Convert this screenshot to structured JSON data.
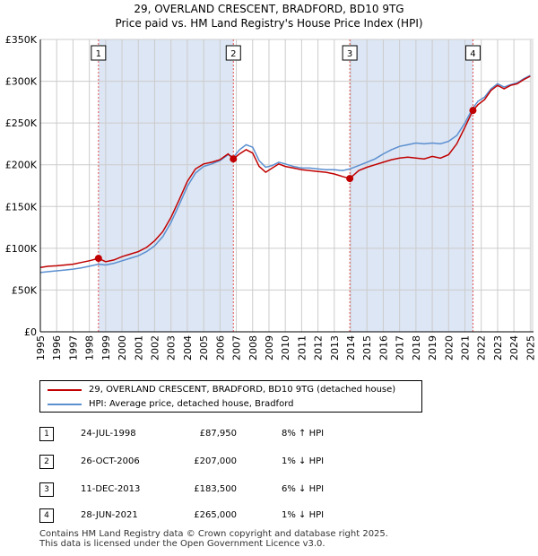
{
  "title_line1": "29, OVERLAND CRESCENT, BRADFORD, BD10 9TG",
  "title_line2": "Price paid vs. HM Land Registry's House Price Index (HPI)",
  "colors": {
    "property": "#c00000",
    "hpi": "#5b8fd0",
    "shade": "#dde6f4",
    "grid": "#cccccc",
    "vline": "#e05050"
  },
  "chart_data": {
    "type": "line",
    "title": "29, OVERLAND CRESCENT, BRADFORD, BD10 9TG",
    "subtitle": "Price paid vs. HM Land Registry's House Price Index (HPI)",
    "xlabel": "",
    "ylabel": "",
    "xlim": [
      1995,
      2025.2
    ],
    "ylim": [
      0,
      350000
    ],
    "y_ticks": [
      0,
      50000,
      100000,
      150000,
      200000,
      250000,
      300000,
      350000
    ],
    "y_tick_labels": [
      "£0",
      "£50K",
      "£100K",
      "£150K",
      "£200K",
      "£250K",
      "£300K",
      "£350K"
    ],
    "x_ticks": [
      1995,
      1996,
      1997,
      1998,
      1999,
      2000,
      2001,
      2002,
      2003,
      2004,
      2005,
      2006,
      2007,
      2008,
      2009,
      2010,
      2011,
      2012,
      2013,
      2014,
      2015,
      2016,
      2017,
      2018,
      2019,
      2020,
      2021,
      2022,
      2023,
      2024,
      2025
    ],
    "x_tick_labels": [
      "1995",
      "1996",
      "1997",
      "1998",
      "1999",
      "2000",
      "2001",
      "2002",
      "2003",
      "2004",
      "2005",
      "2006",
      "2007",
      "2008",
      "2009",
      "2010",
      "2011",
      "2012",
      "2013",
      "2014",
      "2015",
      "2016",
      "2017",
      "2018",
      "2019",
      "2020",
      "2021",
      "2022",
      "2023",
      "2024",
      "2025"
    ],
    "shaded_ranges": [
      [
        1998.56,
        2006.82
      ],
      [
        2013.95,
        2021.49
      ]
    ],
    "series": [
      {
        "name": "29, OVERLAND CRESCENT, BRADFORD, BD10 9TG (detached house)",
        "x": [
          1995.0,
          1995.5,
          1996.0,
          1996.5,
          1997.0,
          1997.5,
          1998.0,
          1998.56,
          1999.0,
          1999.5,
          2000.0,
          2000.5,
          2001.0,
          2001.5,
          2002.0,
          2002.5,
          2003.0,
          2003.5,
          2004.0,
          2004.5,
          2005.0,
          2005.5,
          2006.0,
          2006.5,
          2006.82,
          2007.2,
          2007.6,
          2008.0,
          2008.4,
          2008.8,
          2009.2,
          2009.6,
          2010.0,
          2010.5,
          2011.0,
          2011.5,
          2012.0,
          2012.5,
          2013.0,
          2013.5,
          2013.95,
          2014.5,
          2015.0,
          2015.5,
          2016.0,
          2016.5,
          2017.0,
          2017.5,
          2018.0,
          2018.5,
          2019.0,
          2019.5,
          2020.0,
          2020.5,
          2021.0,
          2021.49,
          2021.8,
          2022.2,
          2022.6,
          2023.0,
          2023.4,
          2023.8,
          2024.2,
          2024.6,
          2025.0
        ],
        "values": [
          77000,
          78500,
          79000,
          80000,
          81000,
          83000,
          85000,
          87950,
          84000,
          86000,
          90000,
          93000,
          96000,
          101000,
          109000,
          120000,
          137000,
          158000,
          180000,
          195000,
          201000,
          203000,
          206000,
          213000,
          207000,
          213000,
          218000,
          214000,
          198000,
          191000,
          196000,
          201000,
          198000,
          196000,
          194000,
          193000,
          192000,
          191000,
          189000,
          186000,
          183500,
          193000,
          197000,
          200000,
          203000,
          206000,
          208000,
          209000,
          208000,
          207000,
          210000,
          208000,
          212000,
          225000,
          245000,
          265000,
          272000,
          278000,
          289000,
          295000,
          291000,
          295000,
          297000,
          302000,
          306000
        ]
      },
      {
        "name": "HPI: Average price, detached house, Bradford",
        "x": [
          1995.0,
          1995.5,
          1996.0,
          1996.5,
          1997.0,
          1997.5,
          1998.0,
          1998.56,
          1999.0,
          1999.5,
          2000.0,
          2000.5,
          2001.0,
          2001.5,
          2002.0,
          2002.5,
          2003.0,
          2003.5,
          2004.0,
          2004.5,
          2005.0,
          2005.5,
          2006.0,
          2006.5,
          2006.82,
          2007.2,
          2007.6,
          2008.0,
          2008.4,
          2008.8,
          2009.2,
          2009.6,
          2010.0,
          2010.5,
          2011.0,
          2011.5,
          2012.0,
          2012.5,
          2013.0,
          2013.5,
          2013.95,
          2014.5,
          2015.0,
          2015.5,
          2016.0,
          2016.5,
          2017.0,
          2017.5,
          2018.0,
          2018.5,
          2019.0,
          2019.5,
          2020.0,
          2020.5,
          2021.0,
          2021.49,
          2021.8,
          2022.2,
          2022.6,
          2023.0,
          2023.4,
          2023.8,
          2024.2,
          2024.6,
          2025.0
        ],
        "values": [
          71000,
          72000,
          73000,
          74000,
          75000,
          76500,
          78500,
          81000,
          80000,
          82000,
          85000,
          88000,
          91000,
          96000,
          103000,
          114000,
          131000,
          152000,
          174000,
          190000,
          198000,
          201000,
          205000,
          212000,
          209000,
          218000,
          224000,
          221000,
          205000,
          197000,
          199000,
          203000,
          201000,
          198000,
          196000,
          196000,
          195000,
          194000,
          194000,
          193000,
          195000,
          199000,
          203000,
          207000,
          213000,
          218000,
          222000,
          224000,
          226000,
          225000,
          226000,
          225000,
          228000,
          235000,
          250000,
          268000,
          276000,
          281000,
          291000,
          297000,
          293000,
          296000,
          298000,
          303000,
          307000
        ]
      }
    ],
    "sales": [
      {
        "num": "1",
        "x": 1998.56,
        "value": 87950
      },
      {
        "num": "2",
        "x": 2006.82,
        "value": 207000
      },
      {
        "num": "3",
        "x": 2013.95,
        "value": 183500
      },
      {
        "num": "4",
        "x": 2021.49,
        "value": 265000
      }
    ]
  },
  "legend": {
    "property_label": "29, OVERLAND CRESCENT, BRADFORD, BD10 9TG (detached house)",
    "hpi_label": "HPI: Average price, detached house, Bradford"
  },
  "transactions": [
    {
      "num": "1",
      "date": "24-JUL-1998",
      "price": "£87,950",
      "hpi": "8% ↑ HPI"
    },
    {
      "num": "2",
      "date": "26-OCT-2006",
      "price": "£207,000",
      "hpi": "1% ↓ HPI"
    },
    {
      "num": "3",
      "date": "11-DEC-2013",
      "price": "£183,500",
      "hpi": "6% ↓ HPI"
    },
    {
      "num": "4",
      "date": "28-JUN-2021",
      "price": "£265,000",
      "hpi": "1% ↓ HPI"
    }
  ],
  "footer": {
    "line1": "Contains HM Land Registry data © Crown copyright and database right 2025.",
    "line2": "This data is licensed under the Open Government Licence v3.0."
  }
}
